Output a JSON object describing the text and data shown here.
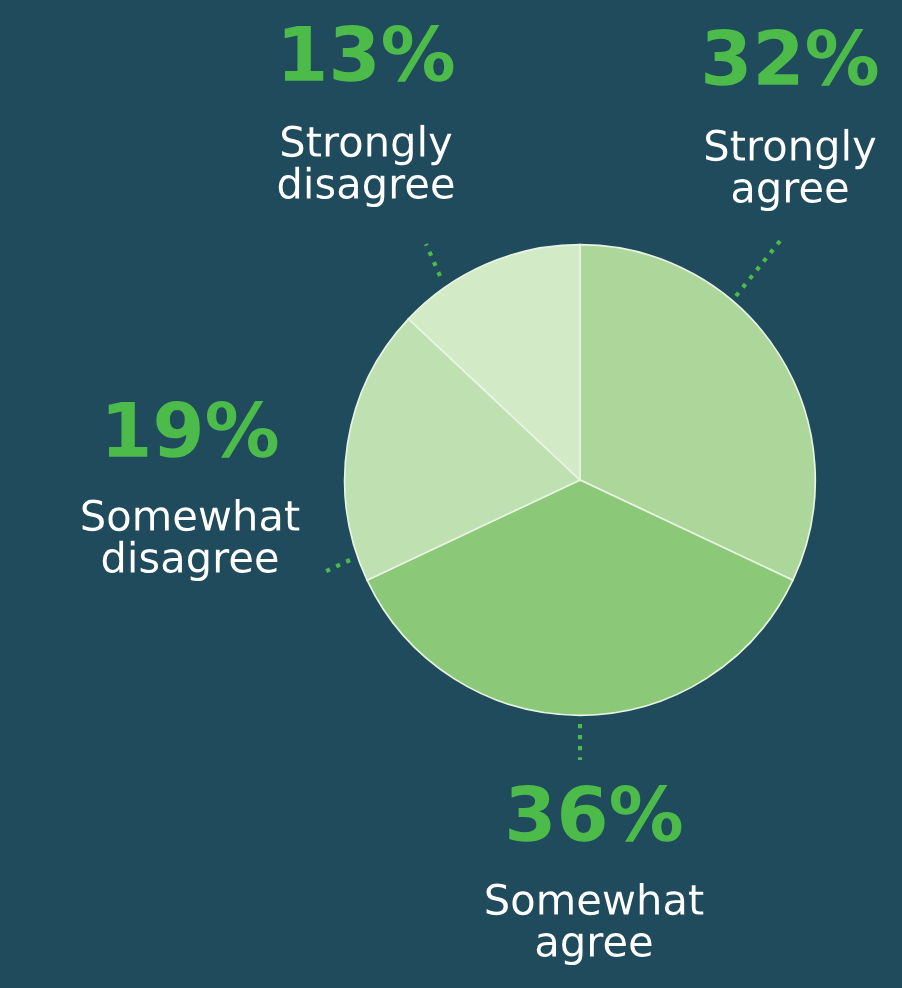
{
  "chart_data": {
    "type": "pie",
    "categories": [
      "Strongly\nagree",
      "Somewhat\nagree",
      "Somewhat\ndisagree",
      "Strongly\ndisagree"
    ],
    "values": [
      32,
      36,
      19,
      13
    ],
    "value_labels": [
      "32%",
      "36%",
      "19%",
      "13%"
    ],
    "colors": [
      "#acd69a",
      "#8bc978",
      "#bfe0b0",
      "#d3eac7"
    ]
  }
}
